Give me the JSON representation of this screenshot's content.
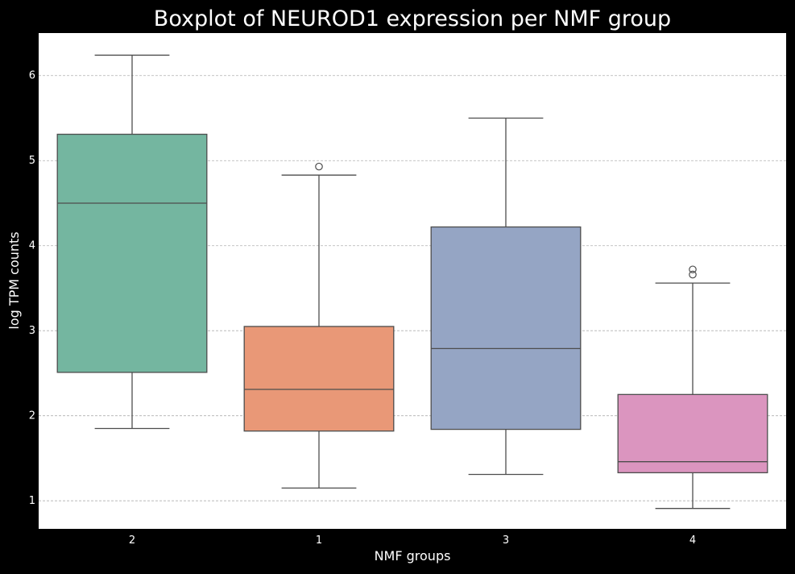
{
  "chart_data": {
    "type": "boxplot",
    "title": "Boxplot of NEUROD1 expression per NMF group",
    "xlabel": "NMF groups",
    "ylabel": "log TPM counts",
    "ylim": [
      0.67,
      6.5
    ],
    "yticks": [
      1,
      2,
      3,
      4,
      5,
      6
    ],
    "grid": "y-dashed",
    "colors": {
      "background": "#000000",
      "plot_area": "#ffffff",
      "text": "#ffffff",
      "grid": "#b0b0b0",
      "box_edge": "#4d4d4d"
    },
    "groups": [
      {
        "category": "2",
        "color": "#74b6a0",
        "whisker_low": 1.85,
        "q1": 2.51,
        "median": 4.5,
        "q3": 5.31,
        "whisker_high": 6.24,
        "outliers": []
      },
      {
        "category": "1",
        "color": "#e99877",
        "whisker_low": 1.15,
        "q1": 1.82,
        "median": 2.31,
        "q3": 3.05,
        "whisker_high": 4.83,
        "outliers": [
          4.93
        ]
      },
      {
        "category": "3",
        "color": "#95a5c4",
        "whisker_low": 1.31,
        "q1": 1.84,
        "median": 2.79,
        "q3": 4.22,
        "whisker_high": 5.5,
        "outliers": []
      },
      {
        "category": "4",
        "color": "#db95bf",
        "whisker_low": 0.91,
        "q1": 1.33,
        "median": 1.46,
        "q3": 2.25,
        "whisker_high": 3.56,
        "outliers": [
          3.66,
          3.72
        ]
      }
    ]
  }
}
